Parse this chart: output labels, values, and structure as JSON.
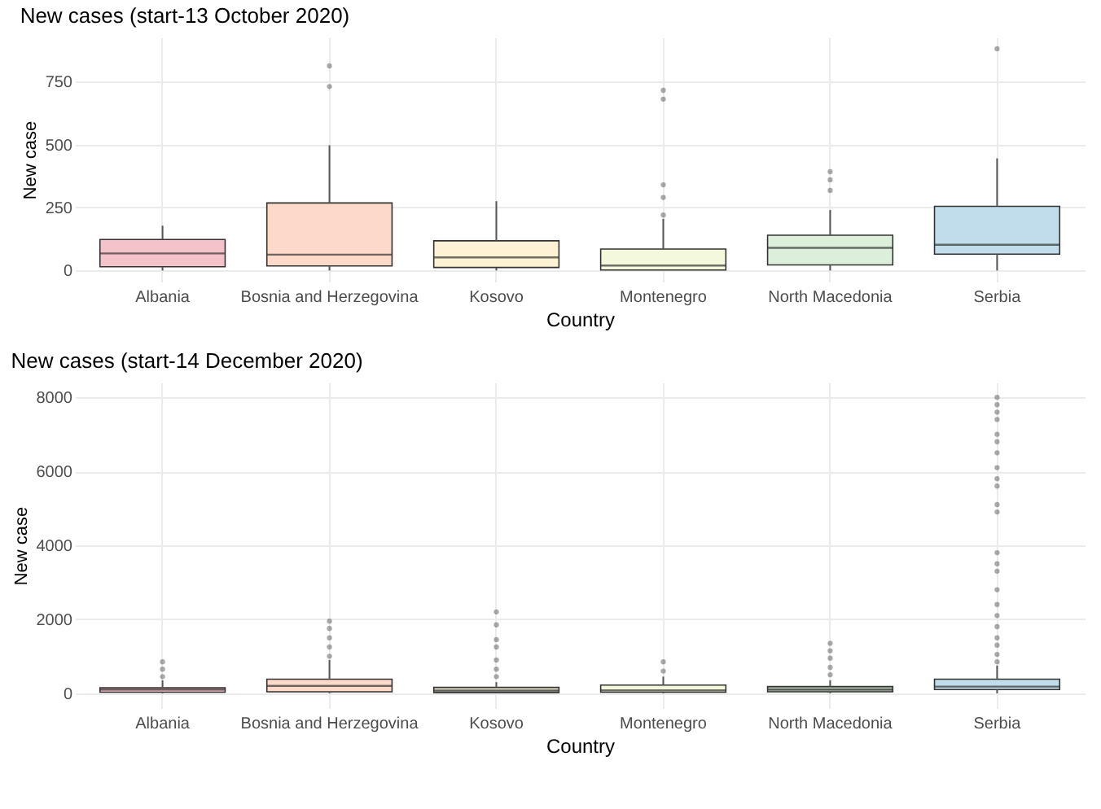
{
  "chart_data": [
    {
      "type": "box",
      "title": "New cases (start-13 October 2020)",
      "xlabel": "Country",
      "ylabel": "New case",
      "categories": [
        "Albania",
        "Bosnia and Herzegovina",
        "Kosovo",
        "Montenegro",
        "North Macedonia",
        "Serbia"
      ],
      "colors": [
        "#f4c2c9",
        "#fcd9c8",
        "#fdf3d4",
        "#f5f9dc",
        "#dcefda",
        "#c1dcea"
      ],
      "boxes": [
        {
          "low": 0,
          "q1": 15,
          "median": 68,
          "q3": 123,
          "high": 178
        },
        {
          "low": 0,
          "q1": 18,
          "median": 63,
          "q3": 268,
          "high": 497,
          "outliers": [
            730,
            812
          ]
        },
        {
          "low": 0,
          "q1": 12,
          "median": 52,
          "q3": 118,
          "high": 275
        },
        {
          "low": 0,
          "q1": 2,
          "median": 20,
          "q3": 85,
          "high": 205,
          "outliers": [
            220,
            290,
            340,
            680,
            715
          ]
        },
        {
          "low": 0,
          "q1": 22,
          "median": 90,
          "q3": 140,
          "high": 240,
          "outliers": [
            318,
            360,
            392
          ]
        },
        {
          "low": 0,
          "q1": 65,
          "median": 102,
          "q3": 255,
          "high": 445,
          "outliers": [
            880
          ]
        }
      ],
      "ylim": [
        -44,
        925
      ],
      "yticks": [
        0,
        250,
        500,
        750
      ],
      "grid": true
    },
    {
      "type": "box",
      "title": "New cases (start-14 December 2020)",
      "xlabel": "Country",
      "ylabel": "New case",
      "categories": [
        "Albania",
        "Bosnia and Herzegovina",
        "Kosovo",
        "Montenegro",
        "North Macedonia",
        "Serbia"
      ],
      "colors": [
        "#f4c2c9",
        "#fcd9c8",
        "#c9c7b4",
        "#f5f9dc",
        "#b9c7b5",
        "#c1dcea"
      ],
      "boxes": [
        {
          "low": 0,
          "q1": 30,
          "median": 100,
          "q3": 150,
          "high": 350,
          "outliers": [
            450,
            650,
            850
          ]
        },
        {
          "low": 0,
          "q1": 40,
          "median": 200,
          "q3": 380,
          "high": 900,
          "outliers": [
            1000,
            1250,
            1500,
            1750,
            1950
          ]
        },
        {
          "low": 0,
          "q1": 20,
          "median": 70,
          "q3": 160,
          "high": 300,
          "outliers": [
            450,
            650,
            900,
            1250,
            1450,
            1850,
            2200
          ]
        },
        {
          "low": 0,
          "q1": 30,
          "median": 80,
          "q3": 220,
          "high": 450,
          "outliers": [
            600,
            850
          ]
        },
        {
          "low": 0,
          "q1": 40,
          "median": 100,
          "q3": 180,
          "high": 350,
          "outliers": [
            500,
            700,
            950,
            1150,
            1350
          ]
        },
        {
          "low": 0,
          "q1": 100,
          "median": 180,
          "q3": 380,
          "high": 750,
          "outliers": [
            850,
            1050,
            1300,
            1500,
            1800,
            2100,
            2400,
            2800,
            3300,
            3500,
            3800,
            4900,
            5100,
            5600,
            5800,
            6100,
            6500,
            6800,
            7000,
            7400,
            7600,
            7800,
            8000
          ]
        }
      ],
      "ylim": [
        -400,
        8400
      ],
      "yticks": [
        0,
        2000,
        4000,
        6000,
        8000
      ],
      "grid": true
    }
  ]
}
